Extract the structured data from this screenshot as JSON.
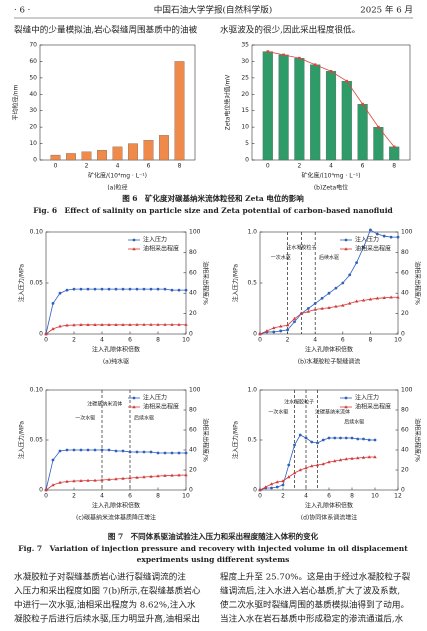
{
  "header": {
    "page": "· 6 ·",
    "journal": "中国石油大学学报(自然科学版)",
    "date": "2025 年 6 月"
  },
  "body_top": [
    "裂缝中的少量模拟油,岩心裂缝周围基质中的油被",
    "水驱波及的很少,因此采出程度很低。"
  ],
  "figure_captions": {
    "fig6_cn": "图 6　矿化度对碳基纳米流体粒径和 Zeta 电位的影响",
    "fig6_en": "Fig. 6　Effect of salinity on particle size and Zeta potential of carbon-based nanofluid",
    "fig7_cn": "图 7　不同体系驱油试验注入压力和采出程度随注入体积的变化",
    "fig7_en_1": "Fig. 7　Variation of injection pressure and recovery with injected volume in oil displacement",
    "fig7_en_2": "experiments using different systems"
  },
  "body_text": {
    "left": [
      "水凝胶粒子对裂缝基质岩心进行裂缝调流的注",
      "入压力和采出程度如图 7(b)所示,在裂缝基质岩心",
      "中进行一次水驱,油相采出程度为 8.62%,注入水",
      "凝胶粒子后进行后续水驱,压力明显升高,油相采出"
    ],
    "right": [
      "程度上升至 25.70%。这是由于经过水凝胶粒子裂",
      "缝调流后,注入水进入岩心基质,扩大了波及系数,",
      "使二次水驱时裂缝周围的基质模拟油得到了动用。",
      "当注入水在岩石基质中形成稳定的渗流通道后,水"
    ]
  },
  "chart_data": [
    {
      "type": "bar",
      "subcaption": "(a)粒径",
      "xlabel": "矿化度/(10⁴mg · L⁻¹)",
      "ylabel": "平均粒径/nm",
      "x": [
        0,
        1,
        2,
        3,
        4,
        5,
        6,
        7,
        8
      ],
      "xlim": [
        -1,
        9
      ],
      "xticks": [
        0,
        2,
        4,
        6,
        8
      ],
      "ylim": [
        0,
        70
      ],
      "yticks": [
        0,
        10,
        20,
        30,
        40,
        50,
        60,
        70
      ],
      "series": [
        {
          "color": "#ef8a4a",
          "values": [
            3,
            4,
            5,
            6,
            8,
            10,
            12,
            15,
            60
          ]
        }
      ]
    },
    {
      "type": "bar",
      "subcaption": "(b)Zeta电位",
      "xlabel": "矿化度/(10⁴mg · L⁻¹)",
      "ylabel": "Zeta电位绝对值/mV",
      "x": [
        0,
        1,
        2,
        3,
        4,
        5,
        6,
        7,
        8
      ],
      "xlim": [
        -1,
        9
      ],
      "xticks": [
        0,
        2,
        4,
        6,
        8
      ],
      "ylim": [
        0,
        35
      ],
      "yticks": [
        0,
        5,
        10,
        15,
        20,
        25,
        30,
        35
      ],
      "line_color": "#d9473f",
      "series": [
        {
          "color": "#2e9b68",
          "values": [
            33,
            32,
            31,
            29,
            27,
            24,
            17,
            10,
            4
          ]
        }
      ]
    },
    {
      "type": "line",
      "subcaption": "(a)纯水驱",
      "xlabel": "注入孔隙体积倍数",
      "ylabel": "注入压力/MPa",
      "y2label": "油相采出程度/%",
      "xlim": [
        0,
        10
      ],
      "xticks": [
        0,
        2,
        4,
        6,
        8,
        10
      ],
      "ylim": [
        0,
        0.1
      ],
      "yticks": [
        0,
        0.05,
        {
          "value": 0.1,
          "label": "0.10"
        }
      ],
      "y2lim": [
        0,
        100
      ],
      "y2ticks": [
        0,
        20,
        40,
        60,
        80,
        100
      ],
      "vlines": [],
      "annotations": [],
      "x": [
        0,
        0.5,
        1,
        1.5,
        2,
        2.5,
        3,
        3.5,
        4,
        4.5,
        5,
        5.5,
        6,
        6.5,
        7,
        7.5,
        8,
        8.5,
        9,
        9.5,
        10
      ],
      "series": [
        {
          "name": "注入压力",
          "color": "#2f5fbf",
          "marker": "circle",
          "values": [
            0,
            0.03,
            0.04,
            0.043,
            0.044,
            0.044,
            0.044,
            0.044,
            0.044,
            0.044,
            0.044,
            0.044,
            0.044,
            0.044,
            0.044,
            0.044,
            0.044,
            0.044,
            0.043,
            0.043,
            0.043
          ]
        },
        {
          "name": "油相采出程度",
          "color": "#d33a3a",
          "marker": "triangle",
          "axis": "y2",
          "values": [
            0,
            5,
            7.5,
            8.5,
            8.8,
            9,
            9,
            9,
            9,
            9,
            9,
            9,
            9,
            9.1,
            9.1,
            9.1,
            9.1,
            9.1,
            9.1,
            9.1,
            9.1
          ]
        }
      ]
    },
    {
      "type": "line",
      "subcaption": "(b)水凝胶粒子裂缝调流",
      "xlabel": "注入孔隙体积倍数",
      "ylabel": "注入压力/MPa",
      "y2label": "油相采出程度/%",
      "xlim": [
        0,
        10
      ],
      "xticks": [
        0,
        2,
        4,
        6,
        8,
        10
      ],
      "ylim": [
        0,
        1
      ],
      "yticks": [
        0,
        0.5,
        {
          "value": 1,
          "label": "1.0"
        }
      ],
      "y2lim": [
        0,
        100
      ],
      "y2ticks": [
        0,
        20,
        40,
        60,
        80,
        100
      ],
      "vlines": [
        2,
        3,
        4
      ],
      "annotations": [
        "一次水驱",
        "注水凝胶粒子",
        "后续水驱"
      ],
      "x": [
        0,
        0.5,
        1,
        1.5,
        2,
        2.5,
        3,
        3.5,
        4,
        4.5,
        5,
        5.5,
        6,
        6.5,
        7,
        7.5,
        8,
        8.5,
        9,
        9.5,
        10
      ],
      "series": [
        {
          "name": "注入压力",
          "color": "#2f5fbf",
          "marker": "circle",
          "values": [
            0,
            0.02,
            0.02,
            0.03,
            0.04,
            0.12,
            0.2,
            0.25,
            0.3,
            0.35,
            0.4,
            0.45,
            0.5,
            0.58,
            0.7,
            0.85,
            1.02,
            0.98,
            0.96,
            0.95,
            0.95
          ]
        },
        {
          "name": "油相采出程度",
          "color": "#d33a3a",
          "marker": "triangle",
          "axis": "y2",
          "values": [
            0,
            3,
            6,
            7.5,
            8.6,
            15,
            20,
            22,
            24,
            25,
            25.7,
            27,
            28,
            30,
            32,
            33,
            34,
            35,
            35.5,
            36,
            36
          ]
        }
      ]
    },
    {
      "type": "line",
      "subcaption": "(c)碳基纳米流体基质降压增注",
      "xlabel": "注入孔隙体积倍数",
      "ylabel": "注入压力/MPa",
      "y2label": "油相采出程度/%",
      "xlim": [
        0,
        10
      ],
      "xticks": [
        0,
        2,
        4,
        6,
        8,
        10
      ],
      "ylim": [
        0,
        0.1
      ],
      "yticks": [
        0,
        0.05,
        {
          "value": 0.1,
          "label": "0.10"
        }
      ],
      "y2lim": [
        0,
        100
      ],
      "y2ticks": [
        0,
        20,
        40,
        60,
        80,
        100
      ],
      "vlines": [
        4,
        6
      ],
      "annotations": [
        "一次水驱",
        "注碳基纳米流体",
        "后续水驱"
      ],
      "x": [
        0,
        0.5,
        1,
        1.5,
        2,
        2.5,
        3,
        3.5,
        4,
        4.5,
        5,
        5.5,
        6,
        6.5,
        7,
        7.5,
        8,
        8.5,
        9,
        9.5,
        10
      ],
      "series": [
        {
          "name": "注入压力",
          "color": "#2f5fbf",
          "marker": "circle",
          "values": [
            0,
            0.03,
            0.039,
            0.04,
            0.04,
            0.04,
            0.04,
            0.04,
            0.04,
            0.04,
            0.039,
            0.039,
            0.038,
            0.038,
            0.038,
            0.038,
            0.037,
            0.037,
            0.037,
            0.037,
            0.037
          ]
        },
        {
          "name": "油相采出程度",
          "color": "#d33a3a",
          "marker": "triangle",
          "axis": "y2",
          "values": [
            0,
            5,
            7.5,
            8.5,
            9,
            9.2,
            9.4,
            9.6,
            10,
            10.5,
            11,
            11.5,
            12,
            12.5,
            13,
            13.5,
            14,
            14.3,
            14.6,
            14.8,
            15
          ]
        }
      ]
    },
    {
      "type": "line",
      "subcaption": "(d)协同体系调流增注",
      "xlabel": "注入孔隙体积倍数",
      "ylabel": "注入压力/MPa",
      "y2label": "油相采出程度/%",
      "xlim": [
        0,
        12
      ],
      "xticks": [
        0,
        2,
        4,
        6,
        8,
        10,
        12
      ],
      "ylim": [
        0,
        1
      ],
      "yticks": [
        0,
        0.5,
        {
          "value": 1,
          "label": "1.0"
        }
      ],
      "y2lim": [
        0,
        100
      ],
      "y2ticks": [
        0,
        20,
        40,
        60,
        80,
        100
      ],
      "vlines": [
        3,
        4,
        5
      ],
      "annotations": [
        "一次水驱",
        "注水凝胶粒子",
        "注碳基纳米流体",
        "后续水驱"
      ],
      "x": [
        0,
        0.5,
        1,
        1.5,
        2,
        2.5,
        3,
        3.5,
        4,
        4.5,
        5,
        5.5,
        6,
        6.5,
        7,
        7.5,
        8,
        8.5,
        9,
        9.5,
        10
      ],
      "series": [
        {
          "name": "注入压力",
          "color": "#2f5fbf",
          "marker": "circle",
          "values": [
            0,
            0.02,
            0.02,
            0.03,
            0.05,
            0.25,
            0.45,
            0.55,
            0.52,
            0.48,
            0.47,
            0.5,
            0.52,
            0.52,
            0.52,
            0.52,
            0.52,
            0.51,
            0.51,
            0.5,
            0.5
          ]
        },
        {
          "name": "油相采出程度",
          "color": "#d33a3a",
          "marker": "triangle",
          "axis": "y2",
          "values": [
            0,
            3,
            6,
            8,
            9,
            13,
            17,
            20,
            22,
            24,
            25,
            26,
            28,
            29,
            30,
            31,
            31.5,
            32,
            32.5,
            33,
            33
          ]
        }
      ]
    }
  ]
}
